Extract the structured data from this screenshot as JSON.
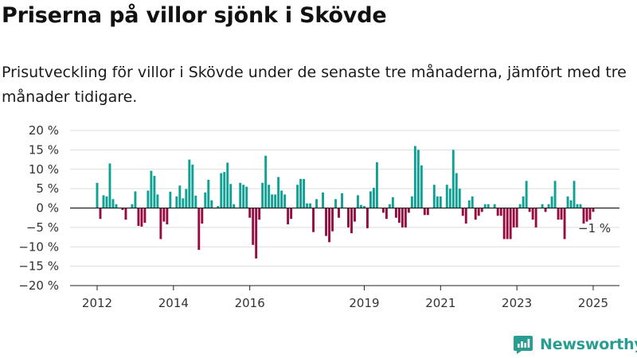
{
  "header": {
    "title": "Priserna på villor sjönk i Skövde",
    "subtitle": "Prisutveckling för villor i Skövde under de senaste tre månaderna, jämfört med tre månader tidigare."
  },
  "brand": {
    "name": "Newsworthy",
    "icon": "newsworthy-logo-icon"
  },
  "colors": {
    "positive": "#0fa193",
    "negative": "#970c40",
    "grid": "#dddddd",
    "axis": "#333333"
  },
  "chart_data": {
    "type": "bar",
    "title": "",
    "xlabel": "",
    "ylabel": "",
    "unit": "%",
    "ylim": [
      -20,
      20
    ],
    "y_ticks": [
      20,
      15,
      10,
      5,
      0,
      -5,
      -10,
      -15,
      -20
    ],
    "y_tick_labels": [
      "20 %",
      "15 %",
      "10 %",
      "5 %",
      "0 %",
      "−5 %",
      "−10 %",
      "−15 %",
      "−20 %"
    ],
    "x_ticks": [
      2012,
      2014,
      2016,
      2019,
      2021,
      2023,
      2025
    ],
    "grid": true,
    "last_value_label": "−1 %",
    "series": [
      {
        "start_year": 2012,
        "start_month": 1,
        "values": [
          6.5,
          -2.8,
          3.3,
          3,
          11.5,
          2.3,
          1,
          0,
          -0.5,
          -3,
          0,
          1,
          4.3,
          -4.6,
          -4.8,
          -3.8,
          4.5,
          9.6,
          8.3,
          3.5,
          -8,
          -3.5,
          -4.2,
          4.2,
          0,
          3,
          5.8,
          2.5,
          4.9,
          12.5,
          11.2,
          3.2,
          -10.8,
          -4,
          4,
          7.3,
          2,
          0,
          0.5,
          9,
          9.3,
          11.7,
          6.2,
          1,
          0,
          6.5,
          6,
          5.5,
          -2.5,
          -9.5,
          -13,
          -3,
          6.5,
          13.5,
          6,
          3.5,
          3.5,
          8,
          4.5,
          3.5,
          -4.2,
          -2.8,
          0,
          6,
          7.5,
          7.5,
          1.2,
          1.2,
          -6.2,
          2.3,
          0,
          4,
          -7.2,
          -8.8,
          -6,
          2.3,
          -2.5,
          3.8,
          0,
          -5,
          -6.5,
          -3.5,
          3.3,
          0.8,
          0.5,
          -5.2,
          4.3,
          5.2,
          11.8,
          0,
          -1.2,
          -2.8,
          1,
          2.8,
          -2.5,
          -3.8,
          -5,
          -5,
          -1.2,
          3,
          16,
          15,
          11,
          -1.8,
          -1.8,
          0,
          6,
          3,
          3,
          0,
          6,
          5,
          15,
          9,
          5,
          -2,
          -4,
          2,
          3,
          -3,
          -2,
          -1,
          1,
          1,
          0,
          1,
          -2,
          -2,
          -8,
          -8,
          -8,
          -5,
          -5,
          1,
          3,
          7,
          -1,
          -3,
          -5,
          0,
          1,
          -1,
          1,
          3,
          7,
          -3,
          -3,
          -8,
          3,
          2,
          7,
          1,
          1,
          -4,
          -3.5,
          -3,
          -1
        ]
      }
    ]
  }
}
